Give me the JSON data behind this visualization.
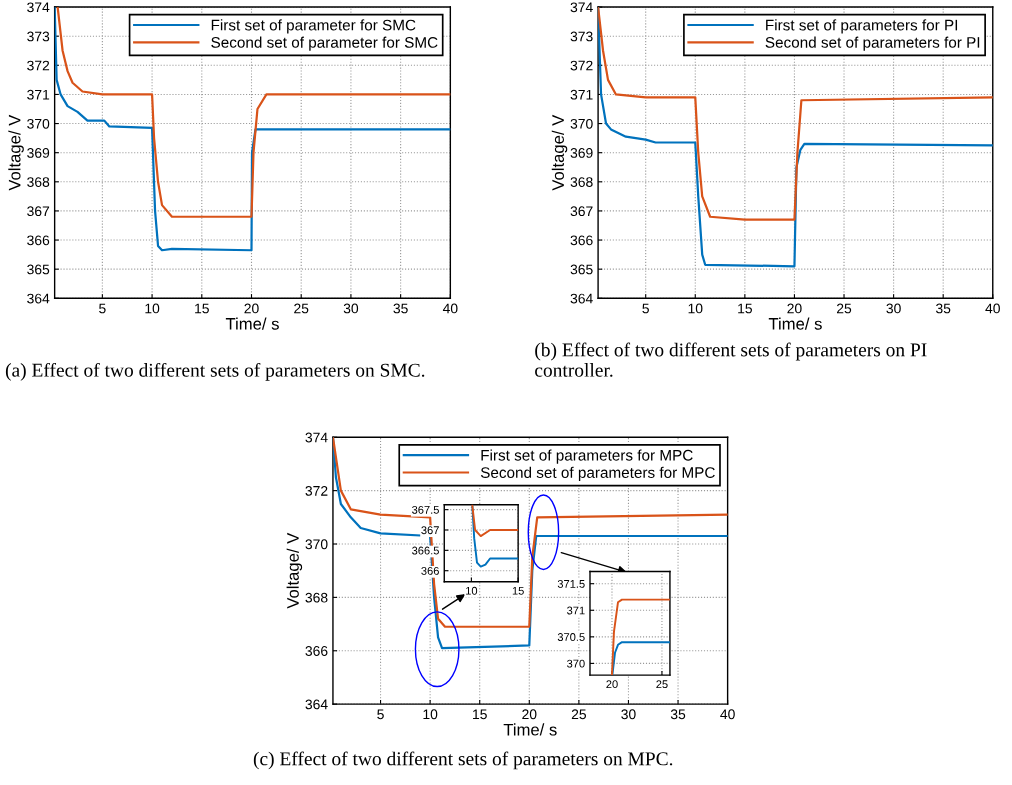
{
  "chart_data": [
    {
      "type": "line",
      "xlabel": "Time/ s",
      "ylabel": "Voltage/ V",
      "xlim": [
        0.2,
        40
      ],
      "ylim": [
        364,
        374
      ],
      "xticks": [
        5,
        10,
        15,
        20,
        25,
        30,
        35,
        40
      ],
      "yticks": [
        364,
        365,
        366,
        367,
        368,
        369,
        370,
        371,
        372,
        373,
        374
      ],
      "grid": true,
      "legend": "top right",
      "annotations": [
        "(a) Effect of two different sets of parameters on SMC."
      ],
      "series": [
        {
          "name": "First set of parameter for SMC",
          "color": "#0072bd",
          "x": [
            0.2,
            0.4,
            0.8,
            1.5,
            2.5,
            3.5,
            5.2,
            5.7,
            10,
            10.3,
            10.6,
            11,
            12,
            20,
            20.05,
            20.4,
            30,
            40
          ],
          "values": [
            374,
            371.5,
            371,
            370.6,
            370.4,
            370.1,
            370.1,
            369.9,
            369.85,
            367,
            365.8,
            365.65,
            365.7,
            365.65,
            369,
            369.8,
            369.8,
            369.8
          ]
        },
        {
          "name": "Second set of parameter for SMC",
          "color": "#d95319",
          "x": [
            0.5,
            1,
            1.5,
            2,
            3,
            5,
            10,
            10.2,
            10.6,
            11,
            12,
            20,
            20.2,
            20.6,
            21.5,
            40
          ],
          "values": [
            374,
            372.5,
            371.8,
            371.4,
            371.1,
            371,
            371,
            369.5,
            368,
            367.2,
            366.8,
            366.8,
            369,
            370.5,
            371,
            371
          ]
        }
      ]
    },
    {
      "type": "line",
      "xlabel": "Time/ s",
      "ylabel": "Voltage/ V",
      "xlim": [
        0.2,
        40
      ],
      "ylim": [
        364,
        374
      ],
      "xticks": [
        5,
        10,
        15,
        20,
        25,
        30,
        35,
        40
      ],
      "yticks": [
        364,
        365,
        366,
        367,
        368,
        369,
        370,
        371,
        372,
        373,
        374
      ],
      "grid": true,
      "legend": "top right",
      "annotations": [
        "(b) Effect of two different sets of parameters on PI controller."
      ],
      "series": [
        {
          "name": "First set of parameters for PI",
          "color": "#0072bd",
          "x": [
            0.2,
            0.5,
            1,
            1.5,
            3,
            5,
            6,
            10,
            10.3,
            10.7,
            11,
            20,
            20.2,
            20.6,
            21,
            40
          ],
          "values": [
            374,
            371,
            370,
            369.8,
            369.55,
            369.45,
            369.35,
            369.35,
            367.5,
            365.5,
            365.15,
            365.1,
            368.5,
            369.1,
            369.3,
            369.25
          ]
        },
        {
          "name": "Second set of parameters for PI",
          "color": "#d95319",
          "x": [
            0.2,
            0.7,
            1.2,
            2,
            5,
            10,
            10.3,
            10.7,
            11.5,
            15,
            20,
            20.3,
            20.7,
            40
          ],
          "values": [
            374,
            372.5,
            371.5,
            371,
            370.9,
            370.9,
            369,
            367.5,
            366.8,
            366.7,
            366.7,
            369,
            370.8,
            370.9
          ]
        }
      ]
    },
    {
      "type": "line",
      "xlabel": "Time/ s",
      "ylabel": "Voltage/ V",
      "xlim": [
        0.2,
        40
      ],
      "ylim": [
        364,
        374
      ],
      "xticks": [
        5,
        10,
        15,
        20,
        25,
        30,
        35,
        40
      ],
      "yticks": [
        364,
        366,
        368,
        370,
        372,
        374
      ],
      "grid": true,
      "legend": "top right",
      "annotations": [
        "(c) Effect of two different sets of parameters on MPC."
      ],
      "series": [
        {
          "name": "First set of parameters for MPC",
          "color": "#0072bd",
          "x": [
            0.2,
            0.5,
            1,
            2,
            3,
            5,
            10,
            10.4,
            10.8,
            11.2,
            20,
            20.3,
            20.7,
            40
          ],
          "values": [
            374,
            372.5,
            371.5,
            371,
            370.6,
            370.4,
            370.3,
            368,
            366.5,
            366.1,
            366.2,
            369,
            370.3,
            370.3
          ]
        },
        {
          "name": "Second set of parameters for MPC",
          "color": "#d95319",
          "x": [
            0.2,
            1,
            2,
            5,
            10,
            10.4,
            10.8,
            11.5,
            20,
            20.3,
            20.8,
            40
          ],
          "values": [
            374,
            372,
            371.3,
            371.1,
            371,
            368.5,
            367.2,
            366.9,
            366.9,
            369.5,
            371,
            371.1
          ]
        }
      ]
    },
    {
      "type": "line",
      "xlim": [
        7.1,
        15
      ],
      "ylim": [
        365.73,
        367.62
      ],
      "xticks": [
        10,
        15
      ],
      "yticks": [
        366,
        366.5,
        367,
        367.5
      ],
      "grid": true,
      "series": [
        {
          "color": "#0072bd",
          "x": [
            10.1,
            10.3,
            10.6,
            11,
            11.5,
            12,
            15
          ],
          "values": [
            367.6,
            366.8,
            366.2,
            366.1,
            366.15,
            366.3,
            366.3
          ]
        },
        {
          "color": "#d95319",
          "x": [
            10.1,
            10.4,
            11,
            12,
            15
          ],
          "values": [
            367.6,
            367,
            366.85,
            367,
            367
          ]
        }
      ]
    },
    {
      "type": "line",
      "xlim": [
        17.8,
        25.8
      ],
      "ylim": [
        369.78,
        371.73
      ],
      "xticks": [
        20,
        25
      ],
      "yticks": [
        370,
        370.5,
        371,
        371.5
      ],
      "grid": true,
      "series": [
        {
          "color": "#0072bd",
          "x": [
            20.05,
            20.3,
            20.6,
            21,
            24,
            25.8
          ],
          "values": [
            369.8,
            370.2,
            370.35,
            370.4,
            370.4,
            370.4
          ]
        },
        {
          "color": "#d95319",
          "x": [
            20,
            20.2,
            20.6,
            21,
            25.8
          ],
          "values": [
            369.8,
            370.6,
            371.15,
            371.2,
            371.2
          ]
        }
      ]
    }
  ]
}
